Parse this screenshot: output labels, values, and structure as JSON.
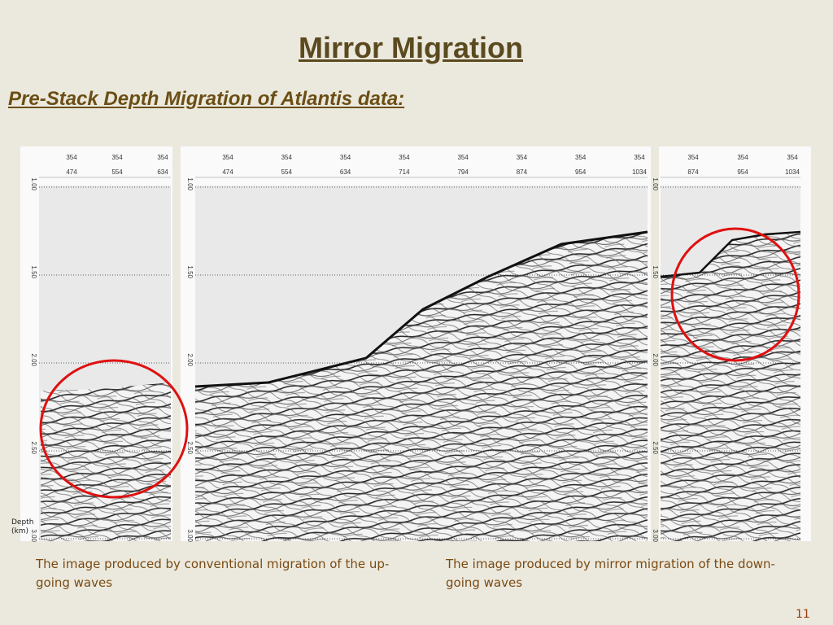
{
  "header": {
    "title": "Mirror Migration",
    "subtitle": "Pre-Stack Depth Migration of Atlantis data:"
  },
  "depth_axis": {
    "label": "Depth\n(km)",
    "ticks": [
      "1.00",
      "1.50",
      "2.00",
      "2.50",
      "3.00"
    ]
  },
  "panels": [
    {
      "headers": [
        [
          "354",
          "474"
        ],
        [
          "354",
          "554"
        ],
        [
          "354",
          "634"
        ]
      ]
    },
    {
      "headers": [
        [
          "354",
          "474"
        ],
        [
          "354",
          "554"
        ],
        [
          "354",
          "634"
        ],
        [
          "354",
          "714"
        ],
        [
          "354",
          "794"
        ],
        [
          "354",
          "874"
        ],
        [
          "354",
          "954"
        ],
        [
          "354",
          "1034"
        ]
      ]
    },
    {
      "headers": [
        [
          "354",
          "874"
        ],
        [
          "354",
          "954"
        ],
        [
          "354",
          "1034"
        ]
      ]
    }
  ],
  "captions": [
    "The image produced by conventional migration of the up-going waves",
    "The image produced by mirror migration of the down-going waves"
  ],
  "page_number": "11"
}
